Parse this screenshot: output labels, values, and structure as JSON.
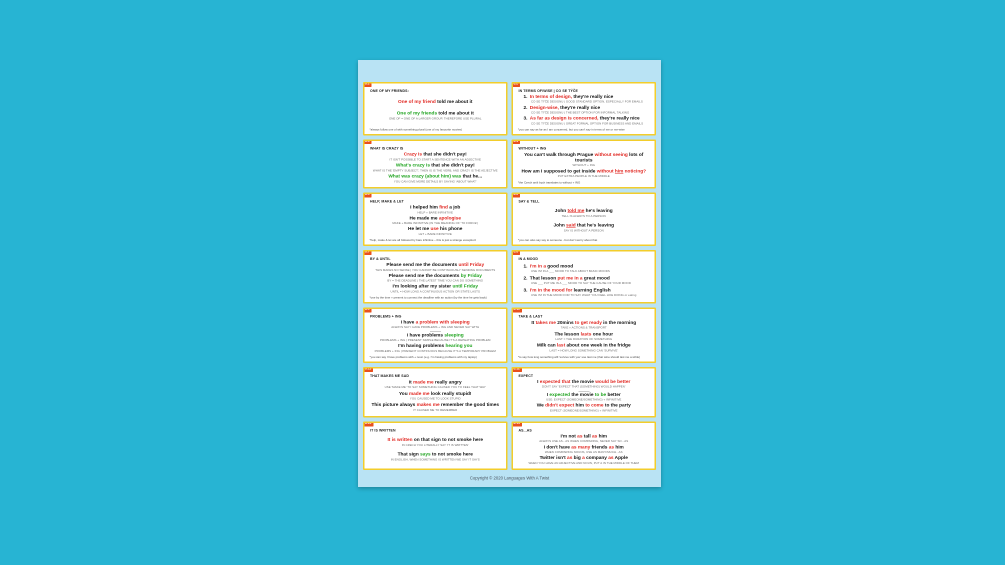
{
  "footer": {
    "text": "Copyright © 2020 Languages With A Twist"
  },
  "colors": {
    "canvas_background": "#27b4d3",
    "page_background": "#b9e3f4",
    "card_background": "#ffffff",
    "card_border": "#f3cd2b",
    "number_tag": "#e8501e",
    "wrong_or_highlight": "#e12620",
    "correct": "#1ea31e",
    "explanation_text": "#6b6b6b"
  },
  "boxes": [
    {
      "id": "8.1",
      "title": "ONE OF MY FRIENDS:",
      "numbered": false,
      "items": [
        {
          "parts": [
            [
              "One of my friend",
              "r"
            ],
            [
              " told me about it",
              "k"
            ]
          ],
          "sub": ""
        },
        {
          "parts": [
            [
              "One of my friends",
              "g"
            ],
            [
              " told me about it",
              "k"
            ]
          ],
          "sub": "ONE OF = ONE OF A LARGER GROUP, THEREFORE USE PLURAL"
        }
      ],
      "note": "*always follow one of with something plural (one of my favourite movies)"
    },
    {
      "id": "8.2",
      "title": "IN TERMS OF/WISE | CO SE TÝČE",
      "numbered": true,
      "items": [
        {
          "parts": [
            [
              "In terms of design,",
              "r"
            ],
            [
              " they're really nice",
              "k"
            ]
          ],
          "sub": "CO SE TÝČE DESIGNU | GOOD STANDARD OPTION, ESPECIALLY FOR EMAILS"
        },
        {
          "parts": [
            [
              "Design-wise,",
              "r"
            ],
            [
              " they're really nice",
              "k"
            ]
          ],
          "sub": "CO SE TÝČE DESIGNU | THE BEST OPTION FOR INFORMAL TALKING"
        },
        {
          "parts": [
            [
              "As far as design is concerned,",
              "r"
            ],
            [
              " they're really nice",
              "k"
            ]
          ],
          "sub": "CO SE TÝČE DESIGNU | GREAT FORMAL OPTION FOR BUSINESS AND EMAILS"
        }
      ],
      "note": "*you can say as far as I am concerned, but you can't say in terms of me or me-wise"
    },
    {
      "id": "8.3",
      "title": "WHAT IS CRAZY IS",
      "numbered": false,
      "items": [
        {
          "parts": [
            [
              "Crazy is",
              "r"
            ],
            [
              " that she didn't pay!",
              "k"
            ]
          ],
          "sub": "IT ISN'T POSSIBLE TO START A SENTENCE WITH AN ADJECTIVE"
        },
        {
          "parts": [
            [
              "What's crazy is",
              "g"
            ],
            [
              " that she didn't pay!",
              "k"
            ]
          ],
          "sub": "WHAT IS THE 'EMPTY SUBJECT', THEN IS IS THE VERB, AND CRAZY IS THE ADJECTIVE"
        },
        {
          "parts": [
            [
              "What was crazy (about him) was",
              "g"
            ],
            [
              " that he...",
              "k"
            ]
          ],
          "sub": "YOU CAN GIVE MORE DETAILS BY SAYING 'ABOUT WHAT'"
        }
      ],
      "note": ""
    },
    {
      "id": "8.4",
      "title": "WITHOUT + ING",
      "numbered": false,
      "items": [
        {
          "parts": [
            [
              "You can't walk through Prague ",
              "k"
            ],
            [
              "without seeing",
              "r"
            ],
            [
              " lots of tourists",
              "k"
            ]
          ],
          "sub": "WITHOUT + ING"
        },
        {
          "parts": [
            [
              "How am I supposed to get inside ",
              "k"
            ],
            [
              "without ",
              "r"
            ],
            [
              "him",
              "ru"
            ],
            [
              " noticing?",
              "r"
            ]
          ],
          "sub": "PUT EXTRA PEOPLE IN THE MIDDLE"
        }
      ],
      "note": "*the Czech aniž bych translates to without + ING"
    },
    {
      "id": "8.5",
      "title": "HELP, MAKE & LET",
      "numbered": false,
      "items": [
        {
          "parts": [
            [
              "I helped him ",
              "k"
            ],
            [
              "find",
              "r"
            ],
            [
              " a job",
              "k"
            ]
          ],
          "sub": "HELP + BARE INFINITIVE"
        },
        {
          "parts": [
            [
              "He made me ",
              "k"
            ],
            [
              "apologise",
              "r"
            ]
          ],
          "sub": "MAKE + BARE INFINITIVE (IN THE MEANING OF 'TO FORCE')"
        },
        {
          "parts": [
            [
              "He let me ",
              "k"
            ],
            [
              "use",
              "r"
            ],
            [
              " his phone",
              "k"
            ]
          ],
          "sub": "LET + BARE INFINITIVE"
        }
      ],
      "note": "*help, make & let are all followed by bare infinitive – this is just a strange exception!"
    },
    {
      "id": "8.6",
      "title": "SAY & TELL",
      "numbered": false,
      "items": [
        {
          "parts": [
            [
              "John ",
              "k"
            ],
            [
              "told me",
              "ru"
            ],
            [
              " he's leaving",
              "k"
            ]
          ],
          "sub": "TELL IS ALWAYS TO A PERSON"
        },
        {
          "parts": [
            [
              "John ",
              "k"
            ],
            [
              "said",
              "ru"
            ],
            [
              " that he's leaving",
              "k"
            ]
          ],
          "sub": "SAY IS WITHOUT A PERSON"
        }
      ],
      "note": "*you can also say say to someone - but don't worry about that"
    },
    {
      "id": "8.7",
      "title": "BY & UNTIL",
      "numbered": false,
      "items": [
        {
          "parts": [
            [
              "Please send me the documents ",
              "k"
            ],
            [
              "until Friday",
              "r"
            ]
          ],
          "sub": "THIS MAKES NO SENSE | YOU CANNOT BE CONTINUOUSLY SENDING DOCUMENTS"
        },
        {
          "parts": [
            [
              "Please send me the documents ",
              "k"
            ],
            [
              "by Friday",
              "g"
            ]
          ],
          "sub": "BY = THE DEADLINE | THE LATEST TIME YOU CAN DO SOMETHING"
        },
        {
          "parts": [
            [
              "I'm looking after my sister ",
              "k"
            ],
            [
              "until Friday",
              "g"
            ]
          ],
          "sub": "UNTIL = HOW LONG A CONTINUOUS ACTION OR STATE LASTS"
        }
      ],
      "note": "*use by the time + present to connect the deadline with an action (by the time he gets back)"
    },
    {
      "id": "8.8",
      "title": "IN A MOOD",
      "numbered": true,
      "items": [
        {
          "parts": [
            [
              "I'm in a",
              "r"
            ],
            [
              " good mood",
              "k"
            ]
          ],
          "sub": "USE I'M IN A ___ MOOD TO TALK ABOUT BASIC MOODS"
        },
        {
          "parts": [
            [
              "That lesson ",
              "k"
            ],
            [
              "put me in a",
              "r"
            ],
            [
              " great mood",
              "k"
            ]
          ],
          "sub": "USE ___ PUT ME IN A ___ MOOD TO SAY THE CAUSE OF YOUR MOOD"
        },
        {
          "parts": [
            [
              "I'm in the mood for",
              "r"
            ],
            [
              " learning English",
              "k"
            ]
          ],
          "sub": "USE I'M IN THE MOOD FOR TO SAY WHAT YOU FEEL LIKE DOING or eating"
        }
      ],
      "note": ""
    },
    {
      "id": "8.9",
      "title": "PROBLEMS + ING",
      "numbered": false,
      "items": [
        {
          "parts": [
            [
              "I have ",
              "k"
            ],
            [
              "a problem with sleeping",
              "r"
            ]
          ],
          "sub": "ALWAYS SAY I HAVE PROBLEMS + ING AND NEVER SAY WITH",
          "divider": true
        },
        {
          "parts": [
            [
              "I have problems ",
              "k"
            ],
            [
              "sleeping",
              "g"
            ]
          ],
          "sub": "PROBLEMS + ING | PRESENT SIMPLE BECAUSE IT'S A REPEATING PROBLEM"
        },
        {
          "parts": [
            [
              "I'm having problems ",
              "k"
            ],
            [
              "hearing you",
              "g"
            ]
          ],
          "sub": "PROBLEMS + ING | PRESENT CONTINUOUS BECAUSE IT'S A TEMPORARY PROBLEM"
        }
      ],
      "note": "*you can say I have problems with + noun (e.g. I'm having problems with my laptop)"
    },
    {
      "id": "8.10",
      "title": "TAKE & LAST",
      "numbered": false,
      "items": [
        {
          "parts": [
            [
              "It ",
              "k"
            ],
            [
              "takes me",
              "r"
            ],
            [
              " 20mins ",
              "k"
            ],
            [
              "to get ready",
              "r"
            ],
            [
              " in the morning",
              "k"
            ]
          ],
          "sub": "TAKE + ACTIONS & TRANSPORT"
        },
        {
          "parts": [
            [
              "The lesson ",
              "k"
            ],
            [
              "lasts",
              "r"
            ],
            [
              " one hour",
              "k"
            ]
          ],
          "sub": "LAST = THE DURATION OF SOMETHING"
        },
        {
          "parts": [
            [
              "Milk can ",
              "k"
            ],
            [
              "last",
              "r"
            ],
            [
              " about one week in the fridge",
              "k"
            ]
          ],
          "sub": "LAST = HOW LONG SOMETHING CAN 'SURVIVE'"
        }
      ],
      "note": "*to say how long something will 'survive with you' use last me (that wine should last me a while)"
    },
    {
      "id": "8.11",
      "title": "THAT MAKES ME SAD",
      "numbered": false,
      "items": [
        {
          "parts": [
            [
              "It ",
              "k"
            ],
            [
              "made me",
              "r"
            ],
            [
              " really angry",
              "k"
            ]
          ],
          "sub": "USE 'MAKE ME' TO SAY SOMETHING CAUSED YOU TO FEEL THAT WAY"
        },
        {
          "parts": [
            [
              "You ",
              "k"
            ],
            [
              "made me",
              "r"
            ],
            [
              " look really stupid!",
              "k"
            ]
          ],
          "sub": "YOU CAUSED ME TO LOOK STUPID"
        },
        {
          "parts": [
            [
              "This picture always ",
              "k"
            ],
            [
              "makes me",
              "r"
            ],
            [
              " remember the good times",
              "k"
            ]
          ],
          "sub": "IT CAUSED ME TO REMEMBER"
        }
      ],
      "note": ""
    },
    {
      "id": "8.12",
      "title": "EXPECT",
      "numbered": false,
      "items": [
        {
          "parts": [
            [
              "I ",
              "k"
            ],
            [
              "expected that",
              "r"
            ],
            [
              " the movie ",
              "k"
            ],
            [
              "would be better",
              "r"
            ]
          ],
          "sub": "DON'T SAY 'EXPECT THAT (SOMETHING) WOULD HAPPEN'",
          "divider": true
        },
        {
          "parts": [
            [
              "I ",
              "k"
            ],
            [
              "expected",
              "g"
            ],
            [
              " the movie ",
              "k"
            ],
            [
              "to be",
              "g"
            ],
            [
              " better",
              "k"
            ]
          ],
          "sub": "USE: EXPECT (SOMEONE/SOMETHING) + INFINITIVE"
        },
        {
          "parts": [
            [
              "We ",
              "k"
            ],
            [
              "didn't expect",
              "r"
            ],
            [
              " him ",
              "k"
            ],
            [
              "to come",
              "r"
            ],
            [
              " to the party",
              "k"
            ]
          ],
          "sub": "EXPECT (SOMEONE/SOMETHING) + INFINITIVE"
        }
      ],
      "note": ""
    },
    {
      "id": "8.13",
      "title": "IT IS WRITTEN",
      "numbered": false,
      "items": [
        {
          "parts": [
            [
              "It is written",
              "r"
            ],
            [
              " on that sign to not smoke here",
              "k"
            ]
          ],
          "sub": "IN CZECH YOU LITERALLY SAY 'IT IS WRITTEN'"
        },
        {
          "parts": [
            [
              "That sign ",
              "k"
            ],
            [
              "says",
              "g"
            ],
            [
              " to not smoke here",
              "k"
            ]
          ],
          "sub": "IN ENGLISH, WHEN SOMETHING IS WRITTEN WE SAY IT SAYS"
        }
      ],
      "note": ""
    },
    {
      "id": "8.14",
      "title": "AS...AS",
      "numbered": false,
      "items": [
        {
          "parts": [
            [
              "I'm not ",
              "k"
            ],
            [
              "as",
              "r"
            ],
            [
              " tall ",
              "k"
            ],
            [
              "as",
              "r"
            ],
            [
              " him",
              "k"
            ]
          ],
          "sub": "ALWAYS USE AS...AS WHEN COMPARING, NEVER SAY SO...AS"
        },
        {
          "parts": [
            [
              "I don't have ",
              "k"
            ],
            [
              "as many",
              "r"
            ],
            [
              " friends ",
              "k"
            ],
            [
              "as",
              "r"
            ],
            [
              " him",
              "k"
            ]
          ],
          "sub": "WHEN COMPARING NOUNS, USE AS MANY/MUCH...AS"
        },
        {
          "parts": [
            [
              "Twitter isn't ",
              "k"
            ],
            [
              "as",
              "r"
            ],
            [
              " big ",
              "k"
            ],
            [
              "a",
              "r"
            ],
            [
              " company ",
              "k"
            ],
            [
              "as",
              "r"
            ],
            [
              " Apple",
              "k"
            ]
          ],
          "sub": "WHEN YOU HAVE AN ADJECTIVE AND NOUN, PUT A IN THE MIDDLE OF THEM"
        }
      ],
      "note": ""
    }
  ]
}
